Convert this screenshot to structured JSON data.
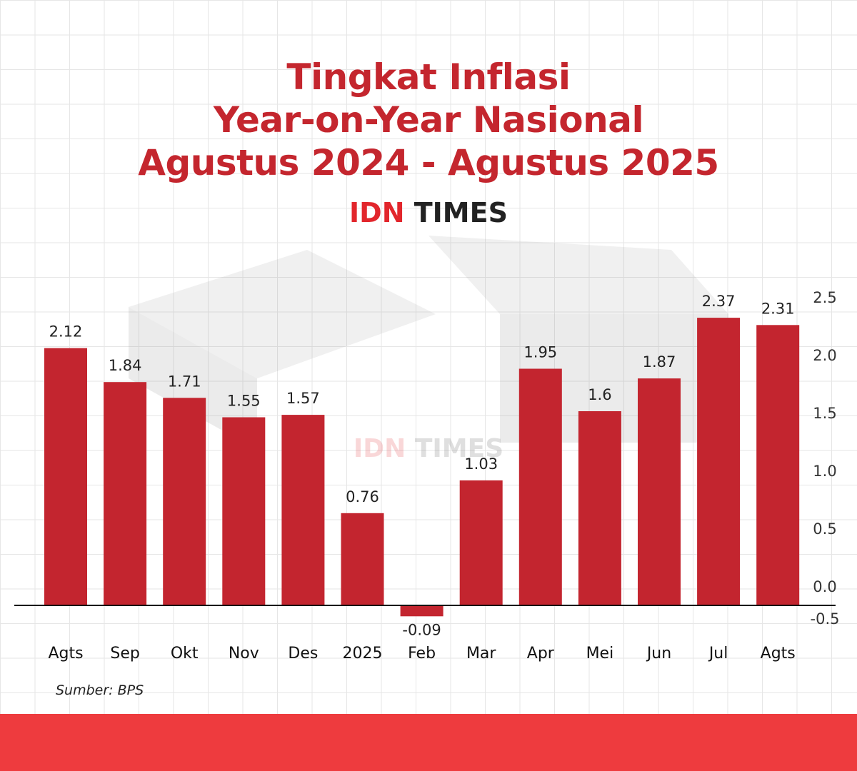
{
  "title_lines": [
    "Tingkat Inflasi",
    "Year-on-Year Nasional",
    "Agustus 2024 - Agustus 2025"
  ],
  "logo": {
    "idn": "IDN",
    "times": "TIMES"
  },
  "source": "Sumber: BPS",
  "colors": {
    "bar": "#c3252f",
    "title": "#c4262e",
    "footer": "#ee3b3e"
  },
  "chart_data": {
    "type": "bar",
    "title": "Tingkat Inflasi Year-on-Year Nasional Agustus 2024 - Agustus 2025",
    "categories": [
      "Agts",
      "Sep",
      "Okt",
      "Nov",
      "Des",
      "2025",
      "Feb",
      "Mar",
      "Apr",
      "Mei",
      "Jun",
      "Jul",
      "Agts"
    ],
    "values": [
      2.12,
      1.84,
      1.71,
      1.55,
      1.57,
      0.76,
      -0.09,
      1.03,
      1.95,
      1.6,
      1.87,
      2.37,
      2.31
    ],
    "value_labels": [
      "2.12",
      "1.84",
      "1.71",
      "1.55",
      "1.57",
      "0.76",
      "-0.09",
      "1.03",
      "1.95",
      "1.6",
      "1.87",
      "2.37",
      "2.31"
    ],
    "yticks": [
      "2.5",
      "2.0",
      "1.5",
      "1.0",
      "0.5",
      "0.0",
      "-0.5"
    ],
    "ytick_values": [
      2.5,
      2.0,
      1.5,
      1.0,
      0.5,
      0.0,
      -0.5
    ],
    "ylim": [
      -0.5,
      2.5
    ],
    "y_axis_position": "right",
    "grid": false,
    "xlabel": "",
    "ylabel": ""
  }
}
